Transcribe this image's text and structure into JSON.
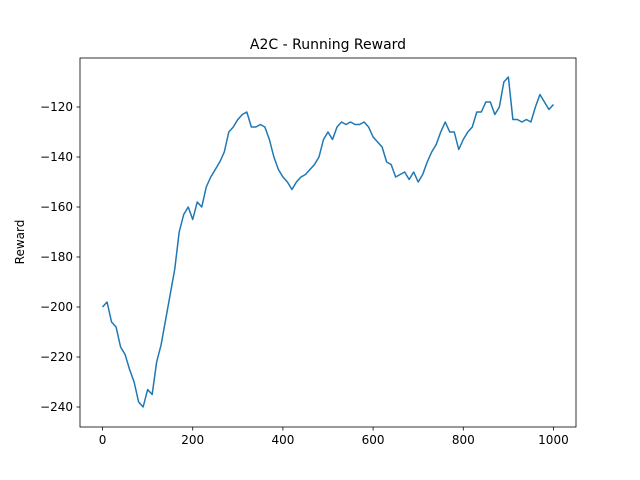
{
  "chart_data": {
    "type": "line",
    "title": "A2C - Running Reward",
    "ylabel": "Reward",
    "x": [
      0,
      10,
      20,
      30,
      40,
      50,
      60,
      70,
      80,
      90,
      100,
      110,
      120,
      130,
      140,
      150,
      160,
      170,
      180,
      190,
      200,
      210,
      220,
      230,
      240,
      250,
      260,
      270,
      280,
      290,
      300,
      310,
      320,
      330,
      340,
      350,
      360,
      370,
      380,
      390,
      400,
      410,
      420,
      430,
      440,
      450,
      460,
      470,
      480,
      490,
      500,
      510,
      520,
      530,
      540,
      550,
      560,
      570,
      580,
      590,
      600,
      610,
      620,
      630,
      640,
      650,
      660,
      670,
      680,
      690,
      700,
      710,
      720,
      730,
      740,
      750,
      760,
      770,
      780,
      790,
      800,
      810,
      820,
      830,
      840,
      850,
      860,
      870,
      880,
      890,
      900,
      910,
      920,
      930,
      940,
      950,
      960,
      970,
      980,
      990,
      1000
    ],
    "series": [
      {
        "name": "Running Reward",
        "color": "#1f77b4",
        "values": [
          -200,
          -198,
          -206,
          -208,
          -216,
          -219,
          -225,
          -230,
          -238,
          -240,
          -233,
          -235,
          -222,
          -215,
          -205,
          -195,
          -185,
          -170,
          -163,
          -160,
          -165,
          -158,
          -160,
          -152,
          -148,
          -145,
          -142,
          -138,
          -130,
          -128,
          -125,
          -123,
          -122,
          -128,
          -128,
          -127,
          -128,
          -133,
          -140,
          -145,
          -148,
          -150,
          -153,
          -150,
          -148,
          -147,
          -145,
          -143,
          -140,
          -133,
          -130,
          -133,
          -128,
          -126,
          -127,
          -126,
          -127,
          -127,
          -126,
          -128,
          -132,
          -134,
          -136,
          -142,
          -143,
          -148,
          -147,
          -146,
          -149,
          -146,
          -150,
          -147,
          -142,
          -138,
          -135,
          -130,
          -126,
          -130,
          -130,
          -137,
          -133,
          -130,
          -128,
          -122,
          -122,
          -118,
          -118,
          -123,
          -120,
          -110,
          -108,
          -125,
          -125,
          -126,
          -125,
          -126,
          -120,
          -115,
          -118,
          -121,
          -119
        ]
      }
    ],
    "xlim": [
      -50,
      1050
    ],
    "ylim": [
      -248,
      -100.4
    ],
    "xticks": [
      0,
      200,
      400,
      600,
      800,
      1000
    ],
    "yticks": [
      {
        "value": -240,
        "label": "−240"
      },
      {
        "value": -220,
        "label": "−220"
      },
      {
        "value": -200,
        "label": "−200"
      },
      {
        "value": -180,
        "label": "−180"
      },
      {
        "value": -160,
        "label": "−160"
      },
      {
        "value": -140,
        "label": "−140"
      },
      {
        "value": -120,
        "label": "−120"
      }
    ]
  }
}
